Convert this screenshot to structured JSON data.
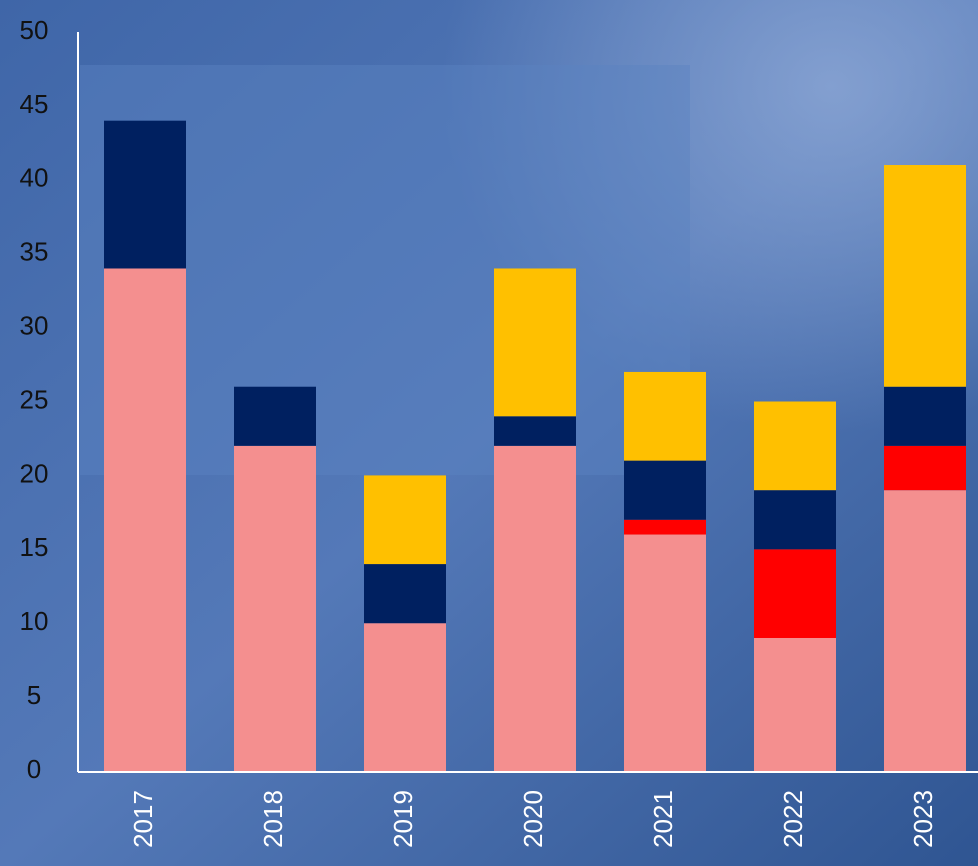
{
  "chart_data": {
    "type": "stacked-bar",
    "categories": [
      "2017",
      "2018",
      "2019",
      "2020",
      "2021",
      "2022",
      "2023"
    ],
    "series": [
      {
        "color": "#f48f8f",
        "values": [
          34,
          22,
          10,
          22,
          16,
          9,
          19
        ]
      },
      {
        "color": "#ff0000",
        "values": [
          0,
          0,
          0,
          0,
          1,
          6,
          3
        ]
      },
      {
        "color": "#002060",
        "values": [
          10,
          4,
          4,
          2,
          4,
          4,
          4
        ]
      },
      {
        "color": "#ffc000",
        "values": [
          0,
          0,
          6,
          10,
          6,
          6,
          15
        ]
      }
    ],
    "ylim": [
      0,
      50
    ],
    "yticks": [
      0,
      5,
      10,
      15,
      20,
      25,
      30,
      35,
      40,
      45,
      50
    ],
    "grid": false
  }
}
